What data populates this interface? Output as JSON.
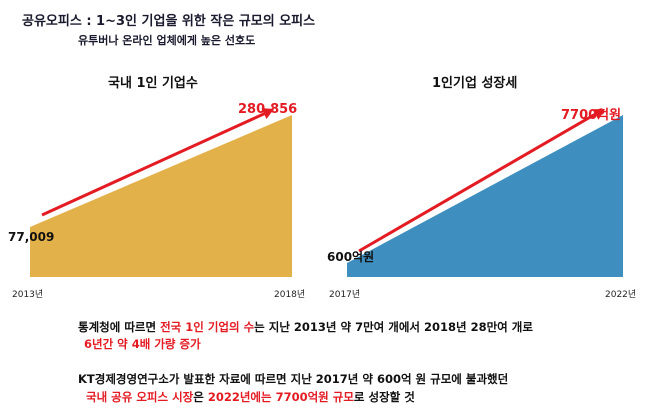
{
  "header": {
    "title": "공유오피스 : 1~3인 기업을 위한 작은 규모의 오피스",
    "subtitle": "유투버나 온라인 업체에게 높은 선호도"
  },
  "chart_data": [
    {
      "type": "area",
      "title": "국내 1인 기업수",
      "x": [
        "2013년",
        "2018년"
      ],
      "values": [
        77009,
        280856
      ],
      "start_label": "77,009",
      "end_label": "280,856",
      "color": "#e3b14a",
      "arrow_color": "#e31b23"
    },
    {
      "type": "area",
      "title": "1인기업 성장세",
      "x": [
        "2017년",
        "2022년"
      ],
      "values": [
        600,
        7700
      ],
      "start_label": "600억원",
      "end_label": "7700억원",
      "color": "#3e8fbf",
      "arrow_color": "#e31b23"
    }
  ],
  "paragraph1": {
    "line1": [
      {
        "text": "통계청",
        "color": "#111111"
      },
      {
        "text": "에 따르면 ",
        "color": "#111111"
      },
      {
        "text": "전국 1인 기업의 수",
        "color": "#e31b23"
      },
      {
        "text": "는 지난 2013년 약 7만여 개에서 2018년 28만여 개로",
        "color": "#111111"
      }
    ],
    "line2": "6년간 약 4배 가량 증가"
  },
  "paragraph2": {
    "line1": "KT경제경영연구소가 발표한 자료에 따르면 지난 2017년 약 600억 원 규모에 불과했던",
    "line2": [
      {
        "text": "국내 공유 오피스 시장",
        "color": "#e31b23"
      },
      {
        "text": "은 ",
        "color": "#111111"
      },
      {
        "text": "2022년에는 7700억원 규모",
        "color": "#e31b23"
      },
      {
        "text": "로 성장할 것",
        "color": "#111111"
      }
    ]
  }
}
